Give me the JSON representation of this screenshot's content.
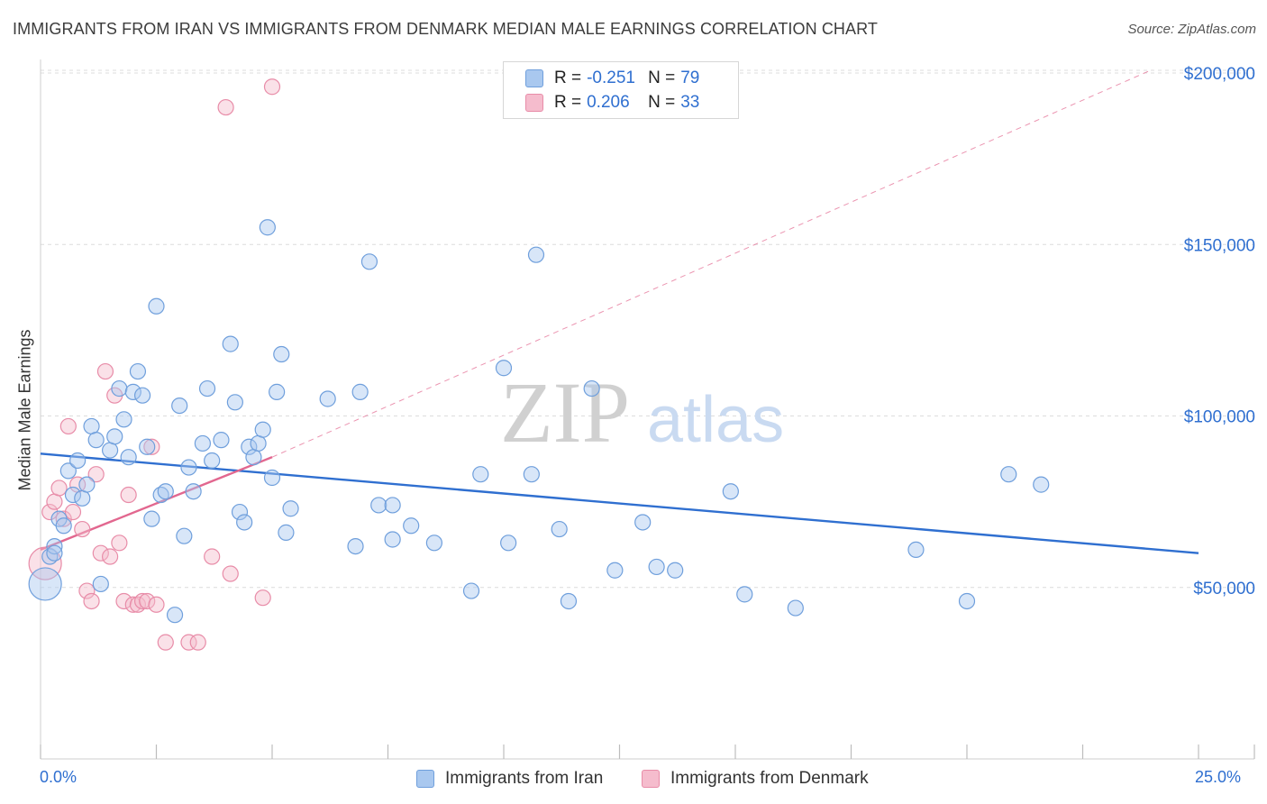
{
  "title": "IMMIGRANTS FROM IRAN VS IMMIGRANTS FROM DENMARK MEDIAN MALE EARNINGS CORRELATION CHART",
  "source": "Source: ZipAtlas.com",
  "watermark": {
    "zip": "ZIP",
    "atlas": "atlas"
  },
  "legend": {
    "iran": {
      "r_label": "R =",
      "r_value": "-0.251",
      "n_label": "N =",
      "n_value": "79"
    },
    "denmark": {
      "r_label": "R =",
      "r_value": "0.206",
      "n_label": "N =",
      "n_value": "33"
    }
  },
  "colors": {
    "iran_fill": "#a9c8ef",
    "iran_stroke": "#6f9fdc",
    "iran_line": "#2f6fd0",
    "denmark_fill": "#f5bccd",
    "denmark_stroke": "#e88ca8",
    "denmark_line": "#e2678f",
    "grid": "#dcdcdc",
    "axis_text": "#2f6fd0"
  },
  "chart_data": {
    "type": "scatter",
    "title": "IMMIGRANTS FROM IRAN VS IMMIGRANTS FROM DENMARK MEDIAN MALE EARNINGS CORRELATION CHART",
    "xlabel": "",
    "ylabel": "Median Male Earnings",
    "xlim": [
      0,
      25
    ],
    "ylim": [
      0,
      205000
    ],
    "x_tick_labels": {
      "min": "0.0%",
      "max": "25.0%"
    },
    "y_ticks": [
      {
        "value": 50000,
        "label": "$50,000"
      },
      {
        "value": 100000,
        "label": "$100,000"
      },
      {
        "value": 150000,
        "label": "$150,000"
      },
      {
        "value": 200000,
        "label": "$200,000"
      }
    ],
    "grid": true,
    "legend_position": "top-center",
    "series": [
      {
        "name": "Immigrants from Iran",
        "points": [
          [
            0.1,
            51000
          ],
          [
            0.2,
            59000
          ],
          [
            0.3,
            62000
          ],
          [
            0.4,
            70000
          ],
          [
            0.5,
            68000
          ],
          [
            0.6,
            84000
          ],
          [
            0.7,
            77000
          ],
          [
            0.8,
            87000
          ],
          [
            0.9,
            76000
          ],
          [
            1.0,
            80000
          ],
          [
            1.1,
            97000
          ],
          [
            1.2,
            93000
          ],
          [
            1.3,
            51000
          ],
          [
            1.5,
            90000
          ],
          [
            1.6,
            94000
          ],
          [
            1.7,
            108000
          ],
          [
            1.8,
            99000
          ],
          [
            1.9,
            88000
          ],
          [
            2.0,
            107000
          ],
          [
            2.1,
            113000
          ],
          [
            2.2,
            106000
          ],
          [
            2.3,
            91000
          ],
          [
            2.4,
            70000
          ],
          [
            2.5,
            132000
          ],
          [
            2.6,
            77000
          ],
          [
            2.7,
            78000
          ],
          [
            2.9,
            42000
          ],
          [
            3.0,
            103000
          ],
          [
            3.1,
            65000
          ],
          [
            3.2,
            85000
          ],
          [
            3.3,
            78000
          ],
          [
            3.5,
            92000
          ],
          [
            3.6,
            108000
          ],
          [
            3.7,
            87000
          ],
          [
            3.9,
            93000
          ],
          [
            4.1,
            121000
          ],
          [
            4.2,
            104000
          ],
          [
            4.3,
            72000
          ],
          [
            4.4,
            69000
          ],
          [
            4.5,
            91000
          ],
          [
            4.6,
            88000
          ],
          [
            4.7,
            92000
          ],
          [
            4.8,
            96000
          ],
          [
            4.9,
            155000
          ],
          [
            5.0,
            82000
          ],
          [
            5.1,
            107000
          ],
          [
            5.2,
            118000
          ],
          [
            5.3,
            66000
          ],
          [
            5.4,
            73000
          ],
          [
            6.2,
            105000
          ],
          [
            6.8,
            62000
          ],
          [
            6.9,
            107000
          ],
          [
            7.1,
            145000
          ],
          [
            7.3,
            74000
          ],
          [
            7.6,
            74000
          ],
          [
            7.6,
            64000
          ],
          [
            8.0,
            68000
          ],
          [
            8.5,
            63000
          ],
          [
            9.3,
            49000
          ],
          [
            9.5,
            83000
          ],
          [
            10.0,
            114000
          ],
          [
            10.1,
            63000
          ],
          [
            10.6,
            83000
          ],
          [
            10.7,
            147000
          ],
          [
            11.2,
            67000
          ],
          [
            11.4,
            46000
          ],
          [
            11.9,
            108000
          ],
          [
            12.4,
            55000
          ],
          [
            13.0,
            69000
          ],
          [
            13.3,
            56000
          ],
          [
            13.7,
            55000
          ],
          [
            14.9,
            78000
          ],
          [
            15.2,
            48000
          ],
          [
            16.3,
            44000
          ],
          [
            18.9,
            61000
          ],
          [
            20.0,
            46000
          ],
          [
            20.9,
            83000
          ],
          [
            21.6,
            80000
          ],
          [
            0.3,
            60000
          ]
        ]
      },
      {
        "name": "Immigrants from Denmark",
        "points": [
          [
            0.1,
            57000
          ],
          [
            0.2,
            72000
          ],
          [
            0.3,
            75000
          ],
          [
            0.4,
            79000
          ],
          [
            0.5,
            70000
          ],
          [
            0.6,
            97000
          ],
          [
            0.7,
            72000
          ],
          [
            0.8,
            80000
          ],
          [
            0.9,
            67000
          ],
          [
            1.0,
            49000
          ],
          [
            1.1,
            46000
          ],
          [
            1.2,
            83000
          ],
          [
            1.3,
            60000
          ],
          [
            1.4,
            113000
          ],
          [
            1.5,
            59000
          ],
          [
            1.6,
            106000
          ],
          [
            1.7,
            63000
          ],
          [
            1.8,
            46000
          ],
          [
            1.9,
            77000
          ],
          [
            2.0,
            45000
          ],
          [
            2.1,
            45000
          ],
          [
            2.2,
            46000
          ],
          [
            2.3,
            46000
          ],
          [
            2.4,
            91000
          ],
          [
            2.5,
            45000
          ],
          [
            2.7,
            34000
          ],
          [
            3.2,
            34000
          ],
          [
            3.4,
            34000
          ],
          [
            3.7,
            59000
          ],
          [
            4.1,
            54000
          ],
          [
            4.8,
            47000
          ],
          [
            5.0,
            196000
          ],
          [
            4.0,
            190000
          ]
        ]
      }
    ],
    "trendlines": [
      {
        "series": "Immigrants from Iran",
        "x": [
          0,
          25
        ],
        "y": [
          89000,
          60000
        ],
        "style": "solid"
      },
      {
        "series": "Immigrants from Denmark",
        "x": [
          0,
          5
        ],
        "y": [
          61000,
          88000
        ],
        "style": "solid"
      },
      {
        "series": "Immigrants from Denmark",
        "x": [
          5,
          24
        ],
        "y": [
          88000,
          201000
        ],
        "style": "dashed"
      }
    ]
  }
}
